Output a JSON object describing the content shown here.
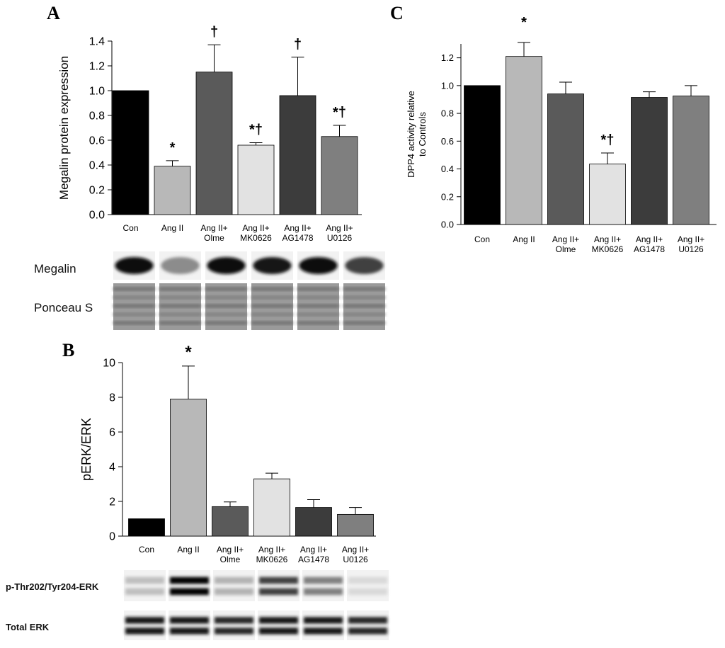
{
  "panels": {
    "A": {
      "letter": "A"
    },
    "B": {
      "letter": "B"
    },
    "C": {
      "letter": "C"
    }
  },
  "colors": {
    "Con": "#000000",
    "Ang II": "#b8b8b8",
    "Ang II+ Olme": "#5a5a5a",
    "Ang II+ MK0626": "#e2e2e2",
    "Ang II+ AG1478": "#3c3c3c",
    "Ang II+ U0126": "#7f7f7f"
  },
  "chart_data": [
    {
      "id": "A",
      "type": "bar",
      "ylabel": "Megalin protein expression",
      "ylim": [
        0,
        1.4
      ],
      "yticks": [
        "0.0",
        "0.2",
        "0.4",
        "0.6",
        "0.8",
        "1.0",
        "1.2",
        "1.4"
      ],
      "categories": [
        [
          "Con"
        ],
        [
          "Ang II"
        ],
        [
          "Ang II+",
          "Olme"
        ],
        [
          "Ang II+",
          "MK0626"
        ],
        [
          "Ang II+",
          "AG1478"
        ],
        [
          "Ang II+",
          "U0126"
        ]
      ],
      "values": [
        1.0,
        0.39,
        1.15,
        0.56,
        0.96,
        0.63
      ],
      "errors": [
        0,
        0.045,
        0.22,
        0.02,
        0.31,
        0.09
      ],
      "annotations": [
        "",
        "*",
        "†",
        "*†",
        "†",
        "*†"
      ],
      "blots": [
        {
          "label": "Megalin",
          "kind": "band",
          "intensity": [
            0.95,
            0.45,
            0.95,
            0.9,
            0.95,
            0.75
          ]
        },
        {
          "label": "Ponceau S",
          "kind": "ponceau",
          "intensity": [
            0.5,
            0.5,
            0.5,
            0.5,
            0.5,
            0.5
          ]
        }
      ]
    },
    {
      "id": "B",
      "type": "bar",
      "ylabel": "pERK/ERK",
      "ylim": [
        0,
        10
      ],
      "yticks": [
        "0",
        "2",
        "4",
        "6",
        "8",
        "10"
      ],
      "categories": [
        [
          "Con"
        ],
        [
          "Ang II"
        ],
        [
          "Ang II+",
          "Olme"
        ],
        [
          "Ang II+",
          "MK0626"
        ],
        [
          "Ang II+",
          "AG1478"
        ],
        [
          "Ang II+",
          "U0126"
        ]
      ],
      "values": [
        1.0,
        7.9,
        1.7,
        3.3,
        1.65,
        1.25
      ],
      "errors": [
        0,
        1.9,
        0.27,
        0.33,
        0.45,
        0.4
      ],
      "annotations": [
        "",
        "*",
        "",
        "",
        "",
        ""
      ],
      "blots": [
        {
          "label": "p-Thr202/Tyr204-ERK",
          "kind": "double",
          "intensity": [
            0.25,
            1.0,
            0.3,
            0.75,
            0.5,
            0.15
          ]
        },
        {
          "label": "Total ERK",
          "kind": "double",
          "intensity": [
            0.9,
            0.9,
            0.85,
            0.9,
            0.9,
            0.85
          ]
        }
      ]
    },
    {
      "id": "C",
      "type": "bar",
      "ylabel": "DPP4 activity relative to Controls",
      "ylim": [
        0,
        1.3
      ],
      "yticks": [
        "0.0",
        "0.2",
        "0.4",
        "0.6",
        "0.8",
        "1.0",
        "1.2"
      ],
      "categories": [
        [
          "Con"
        ],
        [
          "Ang II"
        ],
        [
          "Ang II+",
          "Olme"
        ],
        [
          "Ang II+",
          "MK0626"
        ],
        [
          "Ang II+",
          "AG1478"
        ],
        [
          "Ang II+",
          "U0126"
        ]
      ],
      "values": [
        1.0,
        1.21,
        0.94,
        0.435,
        0.915,
        0.925
      ],
      "errors": [
        0,
        0.1,
        0.085,
        0.08,
        0.04,
        0.075
      ],
      "annotations": [
        "*",
        "",
        "",
        "*†",
        "",
        ""
      ],
      "annotation_top": true,
      "blots": []
    }
  ]
}
